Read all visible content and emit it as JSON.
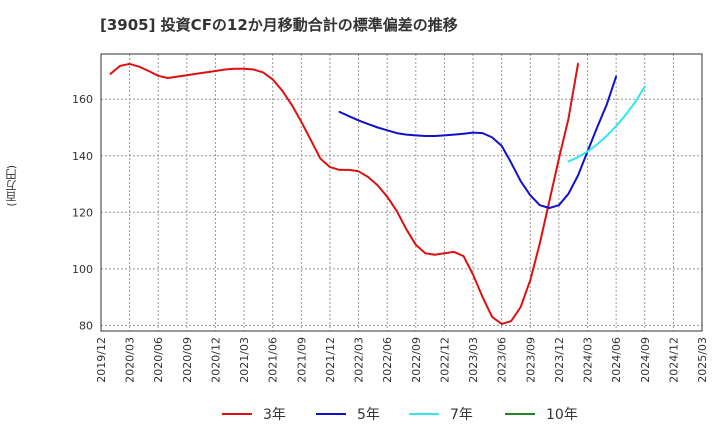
{
  "chart_data": {
    "type": "line",
    "title": "[3905]  投資CFの12か月移動合計の標準偏差の推移",
    "ylabel": "(百万円)",
    "xlabel": "",
    "ylim": [
      78,
      176
    ],
    "yticks": [
      80,
      100,
      120,
      140,
      160
    ],
    "xticks": [
      "2019/12",
      "2020/03",
      "2020/06",
      "2020/09",
      "2020/12",
      "2021/03",
      "2021/06",
      "2021/09",
      "2021/12",
      "2022/03",
      "2022/06",
      "2022/09",
      "2022/12",
      "2023/03",
      "2023/06",
      "2023/09",
      "2023/12",
      "2024/03",
      "2024/06",
      "2024/09",
      "2024/12",
      "2025/03"
    ],
    "grid": true,
    "legend_position": "bottom",
    "series": [
      {
        "name": "3年",
        "color": "#dd1111",
        "start": "2020/01",
        "values": [
          169,
          171.8,
          172.5,
          171.5,
          170,
          168.3,
          167.5,
          168,
          168.5,
          169,
          169.5,
          170,
          170.5,
          170.8,
          170.8,
          170.5,
          169.5,
          167,
          163,
          158,
          152,
          145.5,
          139,
          136,
          135,
          135,
          134.5,
          132.5,
          129.5,
          125.5,
          120.5,
          114,
          108.5,
          105.5,
          105,
          105.5,
          106,
          104.5,
          98,
          90,
          83,
          80.5,
          81.5,
          86.5,
          96,
          109,
          124,
          139,
          153,
          172.5
        ]
      },
      {
        "name": "5年",
        "color": "#1111cc",
        "start": "2022/01",
        "values": [
          155.5,
          154,
          152.5,
          151.2,
          150,
          149,
          148,
          147.5,
          147.2,
          147,
          147,
          147.2,
          147.5,
          147.8,
          148.2,
          148,
          146.5,
          143.5,
          137.5,
          131,
          126,
          122.5,
          121.5,
          122.5,
          126.5,
          133,
          141.5,
          150,
          158,
          168
        ]
      },
      {
        "name": "7年",
        "color": "#33e6f0",
        "start": "2024/01",
        "values": [
          138,
          139.5,
          141.5,
          144,
          147,
          150.5,
          154.5,
          159,
          164.5
        ]
      },
      {
        "name": "10年",
        "color": "#228822",
        "start": "2024/01",
        "values": []
      }
    ]
  }
}
